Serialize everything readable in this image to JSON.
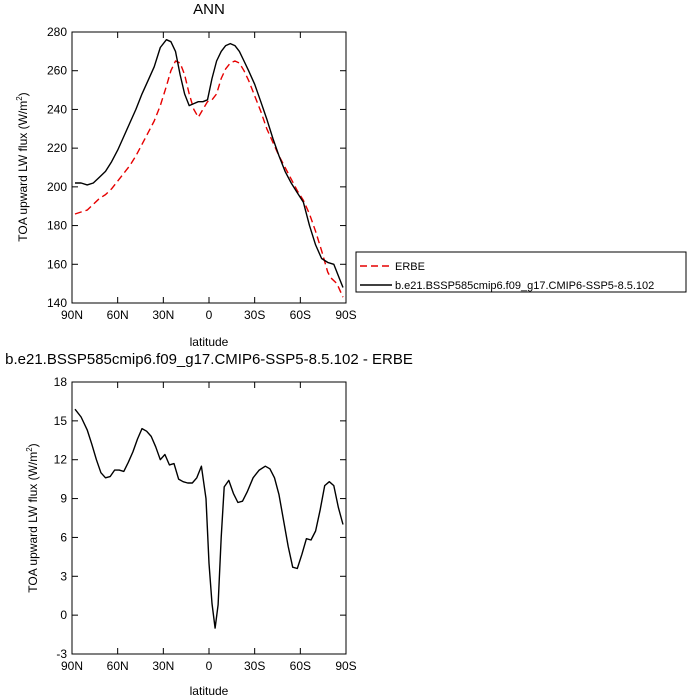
{
  "chart_data": [
    {
      "type": "line",
      "title": "ANN",
      "xlabel": "latitude",
      "ylabel": "TOA upward LW flux (W/m",
      "ylabel_sup": "2",
      "ylabel_end": ")",
      "xlim": [
        90,
        -90
      ],
      "ylim": [
        140,
        280
      ],
      "yticks": [
        140,
        160,
        180,
        200,
        220,
        240,
        260,
        280
      ],
      "xticks": [
        90,
        60,
        30,
        0,
        -30,
        -60,
        -90
      ],
      "xtick_labels": [
        "90N",
        "60N",
        "30N",
        "0",
        "30S",
        "60S",
        "90S"
      ],
      "legend_position": "right",
      "series": [
        {
          "name": "ERBE",
          "color": "#e60000",
          "dash": true,
          "x": [
            88,
            84,
            80,
            76,
            72,
            68,
            64,
            60,
            56,
            52,
            48,
            44,
            40,
            36,
            32,
            28,
            25,
            22,
            19,
            16,
            13,
            10,
            7,
            4,
            1,
            -2,
            -5,
            -8,
            -11,
            -14,
            -17,
            -20,
            -23,
            -26,
            -30,
            -34,
            -38,
            -42,
            -46,
            -50,
            -54,
            -58,
            -62,
            -66,
            -70,
            -74,
            -78,
            -80,
            -84,
            -88
          ],
          "y": [
            186,
            187,
            188,
            191,
            194,
            196,
            199,
            203,
            207,
            211,
            216,
            222,
            228,
            234,
            242,
            252,
            260,
            265,
            264,
            258,
            248,
            240,
            236,
            240,
            244,
            245,
            248,
            256,
            261,
            264,
            265,
            264,
            260,
            255,
            247,
            239,
            230,
            223,
            216,
            210,
            204,
            198,
            193,
            186,
            177,
            167,
            156,
            153,
            150,
            143
          ]
        },
        {
          "name": "b.e21.BSSP585cmip6.f09_g17.CMIP6-SSP5-8.5.102",
          "color": "#000000",
          "dash": false,
          "x": [
            88,
            84,
            80,
            76,
            72,
            68,
            64,
            60,
            56,
            52,
            48,
            44,
            40,
            36,
            32,
            28,
            25,
            22,
            19,
            16,
            13,
            10,
            7,
            4,
            1,
            -2,
            -5,
            -8,
            -11,
            -14,
            -17,
            -20,
            -23,
            -26,
            -30,
            -34,
            -38,
            -42,
            -46,
            -50,
            -54,
            -58,
            -62,
            -66,
            -70,
            -74,
            -78,
            -82,
            -86,
            -88
          ],
          "y": [
            202,
            202,
            201,
            202,
            205,
            208,
            213,
            219,
            226,
            233,
            240,
            248,
            255,
            262,
            272,
            276,
            275,
            270,
            258,
            248,
            242,
            243,
            244,
            244,
            245,
            256,
            265,
            270,
            273,
            274,
            273,
            270,
            265,
            260,
            253,
            244,
            235,
            225,
            216,
            208,
            202,
            197,
            192,
            180,
            170,
            163,
            161,
            160,
            152,
            148
          ]
        }
      ]
    },
    {
      "type": "line",
      "title": "b.e21.BSSP585cmip6.f09_g17.CMIP6-SSP5-8.5.102 - ERBE",
      "xlabel": "latitude",
      "ylabel": "TOA upward LW flux (W/m",
      "ylabel_sup": "2",
      "ylabel_end": ")",
      "xlim": [
        90,
        -90
      ],
      "ylim": [
        -3,
        18
      ],
      "yticks": [
        -3,
        0,
        3,
        6,
        9,
        12,
        15,
        18
      ],
      "xticks": [
        90,
        60,
        30,
        0,
        -30,
        -60,
        -90
      ],
      "xtick_labels": [
        "90N",
        "60N",
        "30N",
        "0",
        "30S",
        "60S",
        "90S"
      ],
      "series": [
        {
          "color": "#000000",
          "dash": false,
          "x": [
            88,
            84,
            80,
            77,
            74,
            71,
            68,
            65,
            62,
            59,
            56,
            53,
            50,
            47,
            44,
            41,
            38,
            35,
            32,
            29,
            26,
            23,
            20,
            17,
            14,
            11,
            8,
            5,
            2,
            0,
            -2,
            -4,
            -6,
            -8,
            -10,
            -13,
            -16,
            -19,
            -22,
            -25,
            -29,
            -33,
            -37,
            -40,
            -43,
            -46,
            -49,
            -52,
            -55,
            -58,
            -61,
            -64,
            -67,
            -70,
            -73,
            -76,
            -79,
            -82,
            -85,
            -88
          ],
          "y": [
            15.9,
            15.3,
            14.3,
            13.2,
            12.0,
            11.0,
            10.6,
            10.7,
            11.2,
            11.2,
            11.1,
            11.8,
            12.6,
            13.6,
            14.4,
            14.2,
            13.8,
            13.0,
            12.0,
            12.4,
            11.6,
            11.7,
            10.5,
            10.3,
            10.2,
            10.2,
            10.6,
            11.5,
            9.0,
            4.0,
            0.9,
            -1.0,
            0.8,
            6.0,
            9.9,
            10.4,
            9.4,
            8.7,
            8.8,
            9.5,
            10.6,
            11.2,
            11.5,
            11.3,
            10.6,
            9.3,
            7.3,
            5.3,
            3.7,
            3.6,
            4.7,
            5.9,
            5.8,
            6.5,
            8.1,
            10.0,
            10.3,
            10.0,
            8.3,
            7.0
          ]
        }
      ]
    }
  ]
}
